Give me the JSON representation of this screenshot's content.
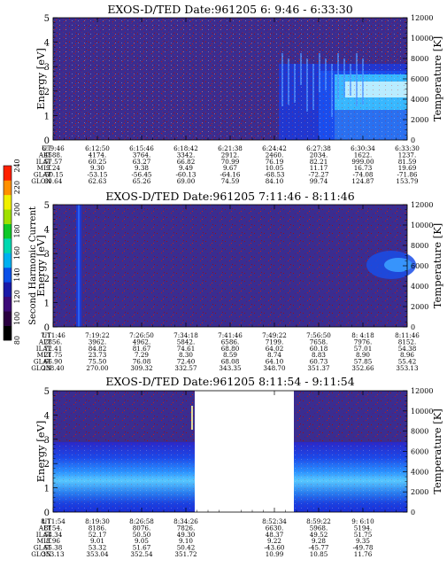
{
  "colorbar": {
    "label": "Second Harmonic Current",
    "ticks": [
      "80",
      "100",
      "120",
      "140",
      "160",
      "180",
      "200",
      "220",
      "240"
    ],
    "colors": [
      "#000000",
      "#2a0040",
      "#3c0a78",
      "#1a1aa8",
      "#0a50e8",
      "#00b0f0",
      "#00d8b0",
      "#10c828",
      "#a0e000",
      "#f0f000",
      "#ff9000",
      "#ff2000"
    ]
  },
  "chart_data": [
    {
      "type": "heatmap",
      "title": "EXOS-D/TED   Date:961205   6: 9:46 - 6:33:30",
      "ylabel": "Energy [eV]",
      "y2label": "Temperature [K]",
      "ylim": [
        0,
        5
      ],
      "y2lim": [
        0,
        12000
      ],
      "yticks": [
        "0",
        "1",
        "2",
        "3",
        "4",
        "5"
      ],
      "y2ticks": [
        "0",
        "2000",
        "4000",
        "6000",
        "8000",
        "10000",
        "12000"
      ],
      "rows": [
        {
          "label": "UT",
          "values": [
            "6: 9:46",
            "6:12:50",
            "6:15:46",
            "6:18:42",
            "6:21:38",
            "6:24:42",
            "6:27:38",
            "6:30:34",
            "6:33:30"
          ]
        },
        {
          "label": "ALT",
          "values": [
            "4588.",
            "4174.",
            "3764.",
            "3342.",
            "2912.",
            "2460.",
            "2034.",
            "1622.",
            "1237."
          ]
        },
        {
          "label": "ILAT",
          "values": [
            "57.57",
            "60.25",
            "63.27",
            "66.82",
            "70.99",
            "76.19",
            "82.21",
            "999.00",
            "81.59"
          ]
        },
        {
          "label": "MLT",
          "values": [
            "9.24",
            "9.30",
            "9.38",
            "9.49",
            "9.67",
            "10.05",
            "11.17",
            "16.73",
            "19.69"
          ]
        },
        {
          "label": "GLAT",
          "values": [
            "-50.15",
            "-53.15",
            "-56.45",
            "-60.13",
            "-64.16",
            "-68.53",
            "-72.27",
            "-74.08",
            "-71.86"
          ]
        },
        {
          "label": "GLON",
          "values": [
            "60.64",
            "62.63",
            "65.26",
            "69.00",
            "74.59",
            "84.10",
            "99.74",
            "124.87",
            "153.79"
          ]
        }
      ]
    },
    {
      "type": "heatmap",
      "title": "EXOS-D/TED   Date:961205   7:11:46 - 8:11:46",
      "ylabel": "Energy [eV]",
      "y2label": "Temperature [K]",
      "ylim": [
        0,
        5
      ],
      "y2lim": [
        0,
        12000
      ],
      "yticks": [
        "0",
        "1",
        "2",
        "3",
        "4",
        "5"
      ],
      "y2ticks": [
        "0",
        "2000",
        "4000",
        "6000",
        "8000",
        "10000",
        "12000"
      ],
      "rows": [
        {
          "label": "UT",
          "values": [
            "7:11:46",
            "7:19:22",
            "7:26:50",
            "7:34:18",
            "7:41:46",
            "7:49:22",
            "7:56:50",
            "8: 4:18",
            "8:11:46"
          ]
        },
        {
          "label": "ALT",
          "values": [
            "2856.",
            "3962.",
            "4962.",
            "5842.",
            "6586.",
            "7199.",
            "7658.",
            "7976.",
            "8152."
          ]
        },
        {
          "label": "ILAT",
          "values": [
            "72.41",
            "84.82",
            "81.67",
            "74.61",
            "68.80",
            "64.02",
            "60.18",
            "57.01",
            "54.38"
          ]
        },
        {
          "label": "MLT",
          "values": [
            "21.75",
            "23.73",
            "7.29",
            "8.30",
            "8.59",
            "8.74",
            "8.83",
            "8.90",
            "8.96"
          ]
        },
        {
          "label": "GLAT",
          "values": [
            "66.90",
            "75.50",
            "76.08",
            "72.40",
            "68.08",
            "64.10",
            "60.73",
            "57.85",
            "55.42"
          ]
        },
        {
          "label": "GLON",
          "values": [
            "238.40",
            "270.00",
            "309.32",
            "332.57",
            "343.35",
            "348.70",
            "351.37",
            "352.66",
            "353.13"
          ]
        }
      ]
    },
    {
      "type": "heatmap",
      "title": "EXOS-D/TED   Date:961205   8:11:54 - 9:11:54",
      "ylabel": "Energy [eV]",
      "y2label": "Temperature [K]",
      "ylim": [
        0,
        5
      ],
      "y2lim": [
        0,
        12000
      ],
      "yticks": [
        "0",
        "1",
        "2",
        "3",
        "4",
        "5"
      ],
      "y2ticks": [
        "0",
        "2000",
        "4000",
        "6000",
        "8000",
        "10000",
        "12000"
      ],
      "rows": [
        {
          "label": "UT",
          "values": [
            "8:11:54",
            "8:19:30",
            "8:26:58",
            "8:34:26",
            "",
            "8:52:34",
            "8:59:22",
            "9: 6:10",
            ""
          ]
        },
        {
          "label": "ALT",
          "values": [
            "8154.",
            "8186.",
            "8076.",
            "7826.",
            "",
            "6630.",
            "5968.",
            "5194.",
            ""
          ]
        },
        {
          "label": "ILAT",
          "values": [
            "54.34",
            "52.17",
            "50.50",
            "49.30",
            "",
            "48.37",
            "49.52",
            "51.75",
            ""
          ]
        },
        {
          "label": "MLT",
          "values": [
            "8.96",
            "9.01",
            "9.05",
            "9.10",
            "",
            "9.22",
            "9.28",
            "9.35",
            ""
          ]
        },
        {
          "label": "GLAT",
          "values": [
            "55.38",
            "53.32",
            "51.67",
            "50.42",
            "",
            "-43.60",
            "-45.77",
            "-49.78",
            ""
          ]
        },
        {
          "label": "GLON",
          "values": [
            "353.13",
            "353.04",
            "352.54",
            "351.72",
            "",
            "10.99",
            "10.85",
            "11.76",
            ""
          ]
        }
      ]
    }
  ]
}
